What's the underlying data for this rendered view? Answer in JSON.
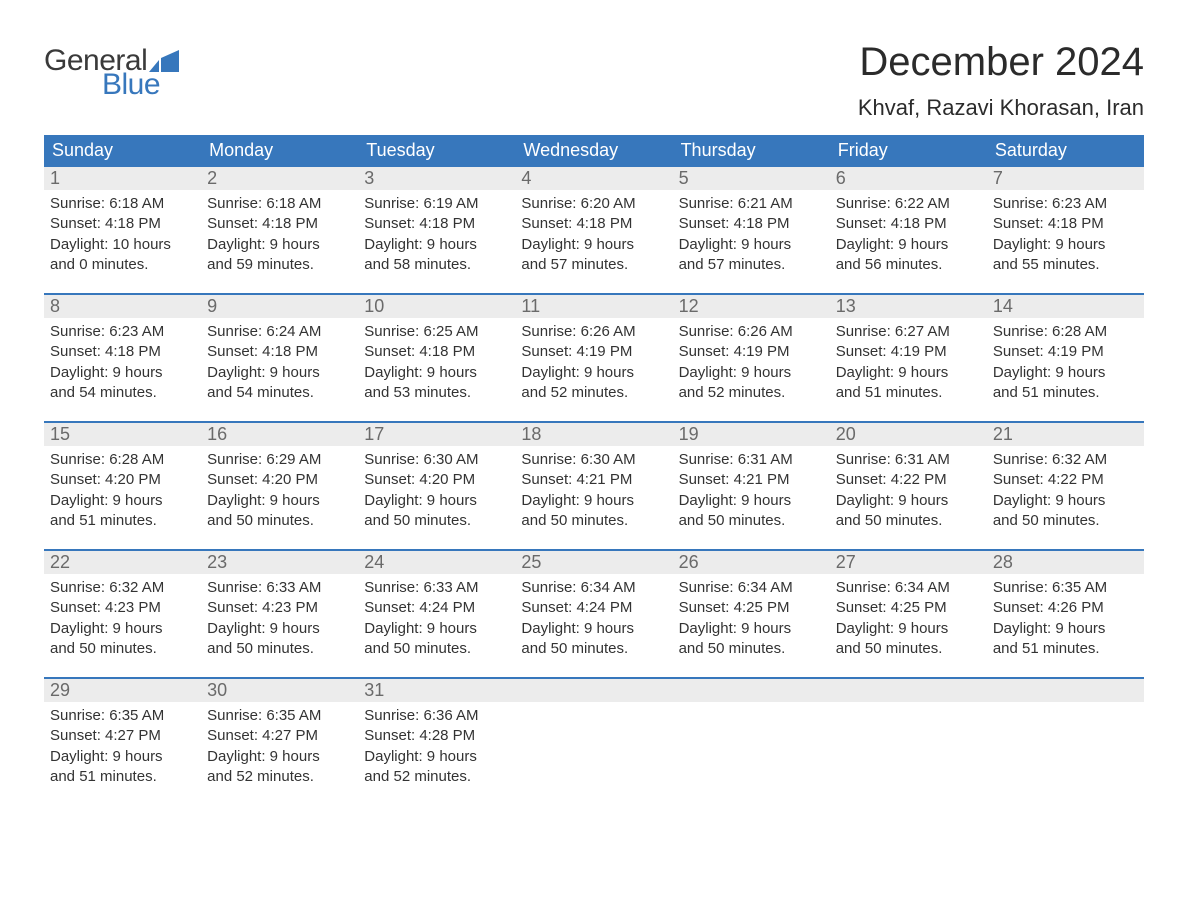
{
  "brand": {
    "general": "General",
    "blue": "Blue",
    "icon_color": "#3777bc"
  },
  "title": "December 2024",
  "location": "Khvaf, Razavi Khorasan, Iran",
  "colors": {
    "header_bg": "#3777bc",
    "header_text": "#ffffff",
    "daynum_bg": "#ececec",
    "daynum_text": "#6a6a6a",
    "body_text": "#333333",
    "rule": "#3777bc",
    "page_bg": "#ffffff"
  },
  "fonts": {
    "title_size_pt": 30,
    "location_size_pt": 17,
    "weekday_size_pt": 14,
    "daynum_size_pt": 14,
    "body_size_pt": 11
  },
  "weekdays": [
    "Sunday",
    "Monday",
    "Tuesday",
    "Wednesday",
    "Thursday",
    "Friday",
    "Saturday"
  ],
  "weeks": [
    [
      {
        "n": "1",
        "sunrise": "Sunrise: 6:18 AM",
        "sunset": "Sunset: 4:18 PM",
        "d1": "Daylight: 10 hours",
        "d2": "and 0 minutes."
      },
      {
        "n": "2",
        "sunrise": "Sunrise: 6:18 AM",
        "sunset": "Sunset: 4:18 PM",
        "d1": "Daylight: 9 hours",
        "d2": "and 59 minutes."
      },
      {
        "n": "3",
        "sunrise": "Sunrise: 6:19 AM",
        "sunset": "Sunset: 4:18 PM",
        "d1": "Daylight: 9 hours",
        "d2": "and 58 minutes."
      },
      {
        "n": "4",
        "sunrise": "Sunrise: 6:20 AM",
        "sunset": "Sunset: 4:18 PM",
        "d1": "Daylight: 9 hours",
        "d2": "and 57 minutes."
      },
      {
        "n": "5",
        "sunrise": "Sunrise: 6:21 AM",
        "sunset": "Sunset: 4:18 PM",
        "d1": "Daylight: 9 hours",
        "d2": "and 57 minutes."
      },
      {
        "n": "6",
        "sunrise": "Sunrise: 6:22 AM",
        "sunset": "Sunset: 4:18 PM",
        "d1": "Daylight: 9 hours",
        "d2": "and 56 minutes."
      },
      {
        "n": "7",
        "sunrise": "Sunrise: 6:23 AM",
        "sunset": "Sunset: 4:18 PM",
        "d1": "Daylight: 9 hours",
        "d2": "and 55 minutes."
      }
    ],
    [
      {
        "n": "8",
        "sunrise": "Sunrise: 6:23 AM",
        "sunset": "Sunset: 4:18 PM",
        "d1": "Daylight: 9 hours",
        "d2": "and 54 minutes."
      },
      {
        "n": "9",
        "sunrise": "Sunrise: 6:24 AM",
        "sunset": "Sunset: 4:18 PM",
        "d1": "Daylight: 9 hours",
        "d2": "and 54 minutes."
      },
      {
        "n": "10",
        "sunrise": "Sunrise: 6:25 AM",
        "sunset": "Sunset: 4:18 PM",
        "d1": "Daylight: 9 hours",
        "d2": "and 53 minutes."
      },
      {
        "n": "11",
        "sunrise": "Sunrise: 6:26 AM",
        "sunset": "Sunset: 4:19 PM",
        "d1": "Daylight: 9 hours",
        "d2": "and 52 minutes."
      },
      {
        "n": "12",
        "sunrise": "Sunrise: 6:26 AM",
        "sunset": "Sunset: 4:19 PM",
        "d1": "Daylight: 9 hours",
        "d2": "and 52 minutes."
      },
      {
        "n": "13",
        "sunrise": "Sunrise: 6:27 AM",
        "sunset": "Sunset: 4:19 PM",
        "d1": "Daylight: 9 hours",
        "d2": "and 51 minutes."
      },
      {
        "n": "14",
        "sunrise": "Sunrise: 6:28 AM",
        "sunset": "Sunset: 4:19 PM",
        "d1": "Daylight: 9 hours",
        "d2": "and 51 minutes."
      }
    ],
    [
      {
        "n": "15",
        "sunrise": "Sunrise: 6:28 AM",
        "sunset": "Sunset: 4:20 PM",
        "d1": "Daylight: 9 hours",
        "d2": "and 51 minutes."
      },
      {
        "n": "16",
        "sunrise": "Sunrise: 6:29 AM",
        "sunset": "Sunset: 4:20 PM",
        "d1": "Daylight: 9 hours",
        "d2": "and 50 minutes."
      },
      {
        "n": "17",
        "sunrise": "Sunrise: 6:30 AM",
        "sunset": "Sunset: 4:20 PM",
        "d1": "Daylight: 9 hours",
        "d2": "and 50 minutes."
      },
      {
        "n": "18",
        "sunrise": "Sunrise: 6:30 AM",
        "sunset": "Sunset: 4:21 PM",
        "d1": "Daylight: 9 hours",
        "d2": "and 50 minutes."
      },
      {
        "n": "19",
        "sunrise": "Sunrise: 6:31 AM",
        "sunset": "Sunset: 4:21 PM",
        "d1": "Daylight: 9 hours",
        "d2": "and 50 minutes."
      },
      {
        "n": "20",
        "sunrise": "Sunrise: 6:31 AM",
        "sunset": "Sunset: 4:22 PM",
        "d1": "Daylight: 9 hours",
        "d2": "and 50 minutes."
      },
      {
        "n": "21",
        "sunrise": "Sunrise: 6:32 AM",
        "sunset": "Sunset: 4:22 PM",
        "d1": "Daylight: 9 hours",
        "d2": "and 50 minutes."
      }
    ],
    [
      {
        "n": "22",
        "sunrise": "Sunrise: 6:32 AM",
        "sunset": "Sunset: 4:23 PM",
        "d1": "Daylight: 9 hours",
        "d2": "and 50 minutes."
      },
      {
        "n": "23",
        "sunrise": "Sunrise: 6:33 AM",
        "sunset": "Sunset: 4:23 PM",
        "d1": "Daylight: 9 hours",
        "d2": "and 50 minutes."
      },
      {
        "n": "24",
        "sunrise": "Sunrise: 6:33 AM",
        "sunset": "Sunset: 4:24 PM",
        "d1": "Daylight: 9 hours",
        "d2": "and 50 minutes."
      },
      {
        "n": "25",
        "sunrise": "Sunrise: 6:34 AM",
        "sunset": "Sunset: 4:24 PM",
        "d1": "Daylight: 9 hours",
        "d2": "and 50 minutes."
      },
      {
        "n": "26",
        "sunrise": "Sunrise: 6:34 AM",
        "sunset": "Sunset: 4:25 PM",
        "d1": "Daylight: 9 hours",
        "d2": "and 50 minutes."
      },
      {
        "n": "27",
        "sunrise": "Sunrise: 6:34 AM",
        "sunset": "Sunset: 4:25 PM",
        "d1": "Daylight: 9 hours",
        "d2": "and 50 minutes."
      },
      {
        "n": "28",
        "sunrise": "Sunrise: 6:35 AM",
        "sunset": "Sunset: 4:26 PM",
        "d1": "Daylight: 9 hours",
        "d2": "and 51 minutes."
      }
    ],
    [
      {
        "n": "29",
        "sunrise": "Sunrise: 6:35 AM",
        "sunset": "Sunset: 4:27 PM",
        "d1": "Daylight: 9 hours",
        "d2": "and 51 minutes."
      },
      {
        "n": "30",
        "sunrise": "Sunrise: 6:35 AM",
        "sunset": "Sunset: 4:27 PM",
        "d1": "Daylight: 9 hours",
        "d2": "and 52 minutes."
      },
      {
        "n": "31",
        "sunrise": "Sunrise: 6:36 AM",
        "sunset": "Sunset: 4:28 PM",
        "d1": "Daylight: 9 hours",
        "d2": "and 52 minutes."
      },
      {
        "empty": true
      },
      {
        "empty": true
      },
      {
        "empty": true
      },
      {
        "empty": true
      }
    ]
  ]
}
